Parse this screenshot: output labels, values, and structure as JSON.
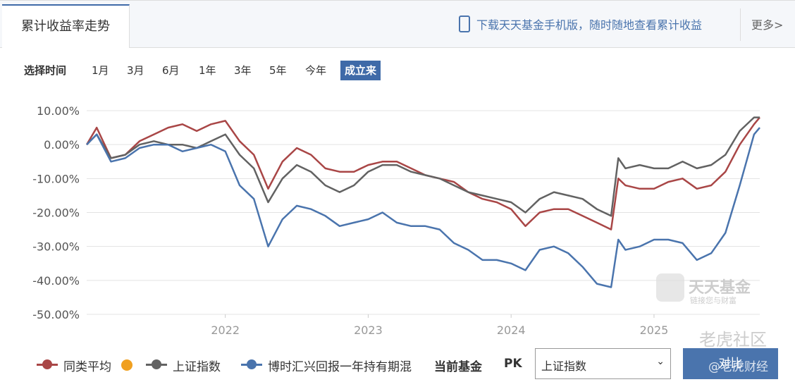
{
  "header": {
    "tab": "累计收益率走势",
    "promo": "下载天天基金手机版，随时随地查看累计收益",
    "more": "更多>"
  },
  "period": {
    "label": "选择时间",
    "options": [
      "1月",
      "3月",
      "6月",
      "1年",
      "3年",
      "5年",
      "今年",
      "成立来"
    ]
  },
  "compare": {
    "current": "当前基金",
    "pk": "PK",
    "select": "上证指数",
    "button": "对比"
  },
  "watermarks": [
    "天天基金",
    "链接您与财富",
    "老虎社区",
    "@老虎财经"
  ],
  "chart_data": {
    "type": "line",
    "x": [
      2021.03,
      2021.1,
      2021.2,
      2021.3,
      2021.4,
      2021.5,
      2021.6,
      2021.7,
      2021.8,
      2021.9,
      2022.0,
      2022.1,
      2022.2,
      2022.3,
      2022.4,
      2022.5,
      2022.6,
      2022.7,
      2022.8,
      2022.9,
      2023.0,
      2023.1,
      2023.2,
      2023.3,
      2023.4,
      2023.5,
      2023.6,
      2023.7,
      2023.8,
      2023.9,
      2024.0,
      2024.1,
      2024.2,
      2024.3,
      2024.4,
      2024.5,
      2024.6,
      2024.7,
      2024.75,
      2024.8,
      2024.9,
      2025.0,
      2025.1,
      2025.2,
      2025.3,
      2025.4,
      2025.5,
      2025.6,
      2025.7,
      2025.74
    ],
    "xlim": [
      2021.03,
      2025.74
    ],
    "xticks": [
      2022,
      2023,
      2024,
      2025
    ],
    "ylim": [
      -50,
      10
    ],
    "yticks": [
      {
        "value": 10,
        "label": "10.00%"
      },
      {
        "value": 0,
        "label": "0.00%"
      },
      {
        "value": -10,
        "label": "-10.00%"
      },
      {
        "value": -20,
        "label": "-20.00%"
      },
      {
        "value": -30,
        "label": "-30.00%"
      },
      {
        "value": -40,
        "label": "-40.00%"
      },
      {
        "value": -50,
        "label": "-50.00%"
      }
    ],
    "grid": true,
    "series": [
      {
        "name": "同类平均",
        "color": "#a94646",
        "values": [
          0,
          5,
          -4,
          -3,
          1,
          3,
          5,
          6,
          4,
          6,
          7,
          1,
          -3,
          -13,
          -5,
          -1,
          -3,
          -7,
          -8,
          -8,
          -6,
          -5,
          -5,
          -7,
          -9,
          -10,
          -11,
          -14,
          -16,
          -17,
          -19,
          -24,
          -20,
          -19,
          -19,
          -21,
          -23,
          -25,
          -10,
          -12,
          -13,
          -13,
          -11,
          -10,
          -13,
          -12,
          -8,
          0,
          6,
          8
        ]
      },
      {
        "name": "上证指数",
        "color": "#626262",
        "values": [
          0,
          3,
          -4,
          -3,
          0,
          1,
          0,
          0,
          -1,
          1,
          3,
          -3,
          -7,
          -17,
          -10,
          -6,
          -8,
          -12,
          -14,
          -12,
          -8,
          -6,
          -6,
          -8,
          -9,
          -10,
          -12,
          -14,
          -15,
          -16,
          -17,
          -20,
          -16,
          -14,
          -15,
          -16,
          -19,
          -21,
          -4,
          -7,
          -6,
          -7,
          -7,
          -5,
          -7,
          -6,
          -3,
          4,
          8,
          8
        ]
      },
      {
        "name": "博时汇兴回报一年持有期混",
        "color": "#4a74ad",
        "values": [
          0,
          3,
          -5,
          -4,
          -1,
          0,
          0,
          -2,
          -1,
          0,
          -2,
          -12,
          -16,
          -30,
          -22,
          -18,
          -19,
          -21,
          -24,
          -23,
          -22,
          -20,
          -23,
          -24,
          -24,
          -25,
          -29,
          -31,
          -34,
          -34,
          -35,
          -37,
          -31,
          -30,
          -32,
          -36,
          -41,
          -42,
          -28,
          -31,
          -30,
          -28,
          -28,
          -29,
          -34,
          -32,
          -26,
          -12,
          3,
          5
        ]
      }
    ]
  }
}
